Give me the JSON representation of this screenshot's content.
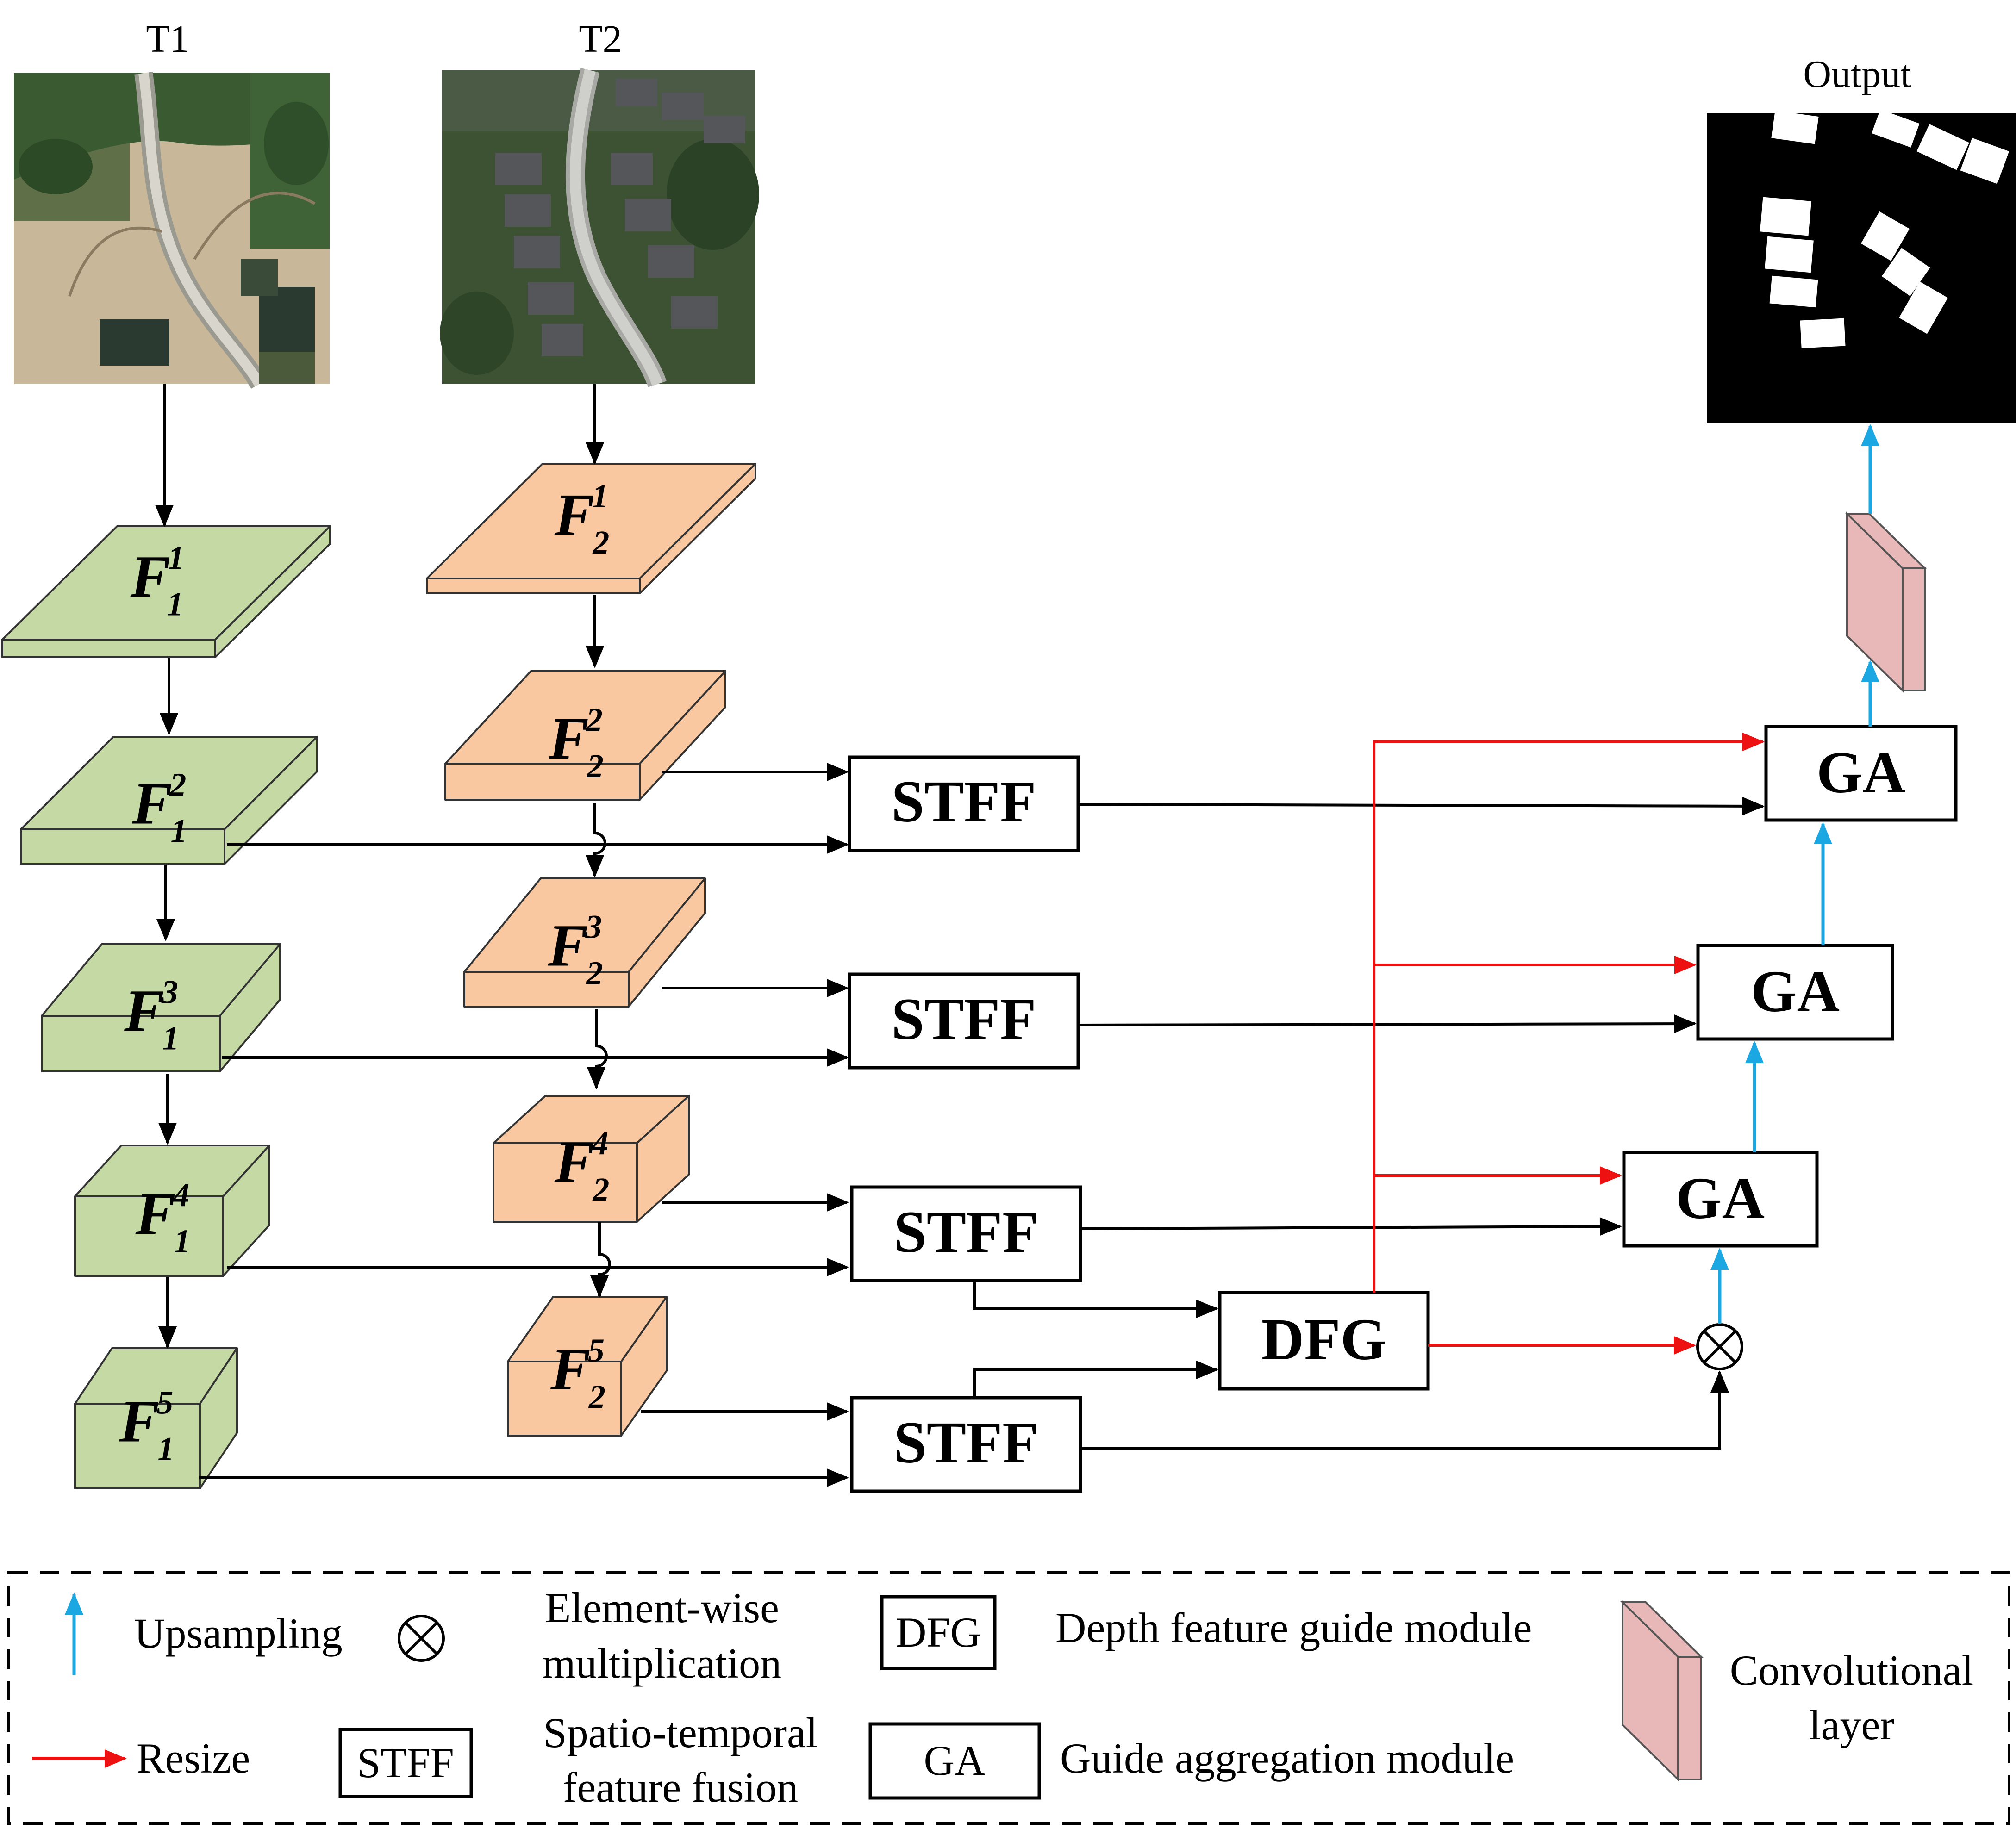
{
  "images": {
    "t1_label": "T1",
    "t2_label": "T2",
    "output_label": "Output"
  },
  "features": {
    "t1": [
      {
        "base": "F",
        "sup": "1",
        "sub": "1"
      },
      {
        "base": "F",
        "sup": "2",
        "sub": "1"
      },
      {
        "base": "F",
        "sup": "3",
        "sub": "1"
      },
      {
        "base": "F",
        "sup": "4",
        "sub": "1"
      },
      {
        "base": "F",
        "sup": "5",
        "sub": "1"
      }
    ],
    "t2": [
      {
        "base": "F",
        "sup": "1",
        "sub": "2"
      },
      {
        "base": "F",
        "sup": "2",
        "sub": "2"
      },
      {
        "base": "F",
        "sup": "3",
        "sub": "2"
      },
      {
        "base": "F",
        "sup": "4",
        "sub": "2"
      },
      {
        "base": "F",
        "sup": "5",
        "sub": "2"
      }
    ]
  },
  "modules": {
    "stff": [
      "STFF",
      "STFF",
      "STFF",
      "STFF"
    ],
    "dfg": "DFG",
    "ga": [
      "GA",
      "GA",
      "GA"
    ]
  },
  "legend": {
    "upsampling": "Upsampling",
    "multiplication_line1": "Element-wise",
    "multiplication_line2": "multiplication",
    "dfg_box": "DFG",
    "dfg_desc": "Depth feature guide module",
    "conv_line1": "Convolutional",
    "conv_line2": "layer",
    "resize": "Resize",
    "stff_box": "STFF",
    "stff_line1": "Spatio-temporal",
    "stff_line2": "feature fusion",
    "ga_box": "GA",
    "ga_desc": "Guide aggregation module"
  },
  "colors": {
    "t1_feature": "#c5d9a4",
    "t2_feature": "#f9c8a0",
    "conv_layer": "#e8b8b8",
    "upsample_arrow": "#1aa7e2",
    "resize_arrow": "#ee1111",
    "line": "#000000"
  }
}
